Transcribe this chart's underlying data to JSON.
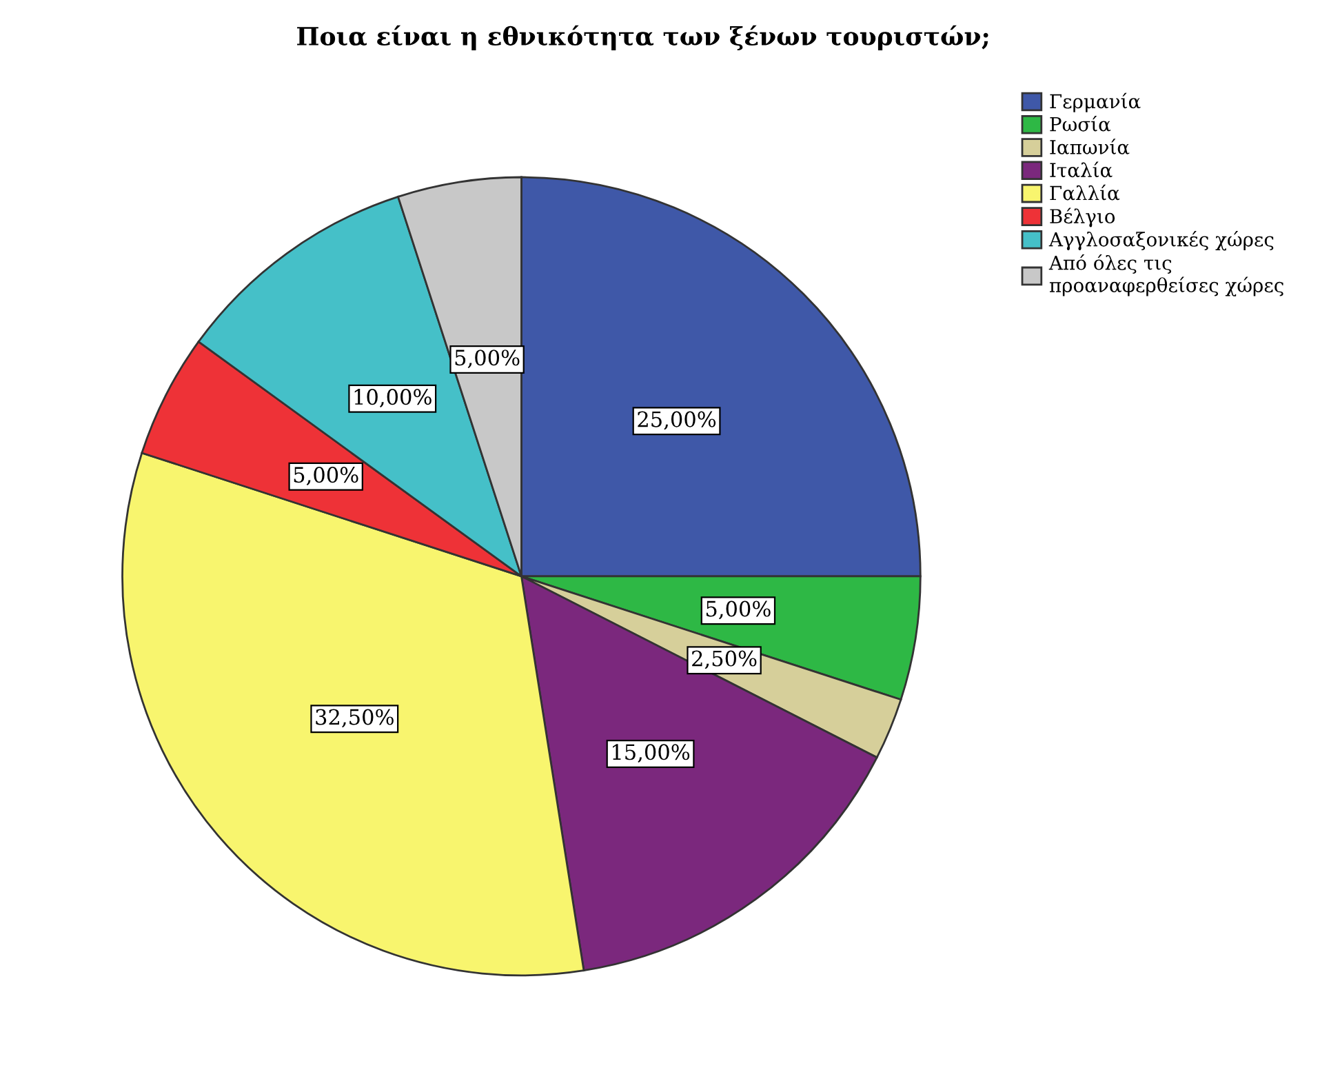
{
  "chart_data": {
    "type": "pie",
    "title": "Ποια είναι η εθνικότητα των ξένων τουριστών;",
    "categories": [
      "Γερμανία",
      "Ρωσία",
      "Ιαπωνία",
      "Ιταλία",
      "Γαλλία",
      "Βέλγιο",
      "Αγγλοσαξονικές χώρες",
      "Από όλες τις\nπροαναφερθείσες χώρες"
    ],
    "values": [
      25,
      5,
      2.5,
      15,
      32.5,
      5,
      10,
      5
    ],
    "colors": [
      "#3f58a8",
      "#2eb845",
      "#d6cf9a",
      "#7b287d",
      "#f8f56e",
      "#ee3237",
      "#45c0c8",
      "#c8c8c8"
    ],
    "value_labels": [
      "25,00%",
      "5,00%",
      "2,50%",
      "15,00%",
      "32,50%",
      "5,00%",
      "10,00%",
      "5,00%"
    ],
    "legend": "top right"
  }
}
